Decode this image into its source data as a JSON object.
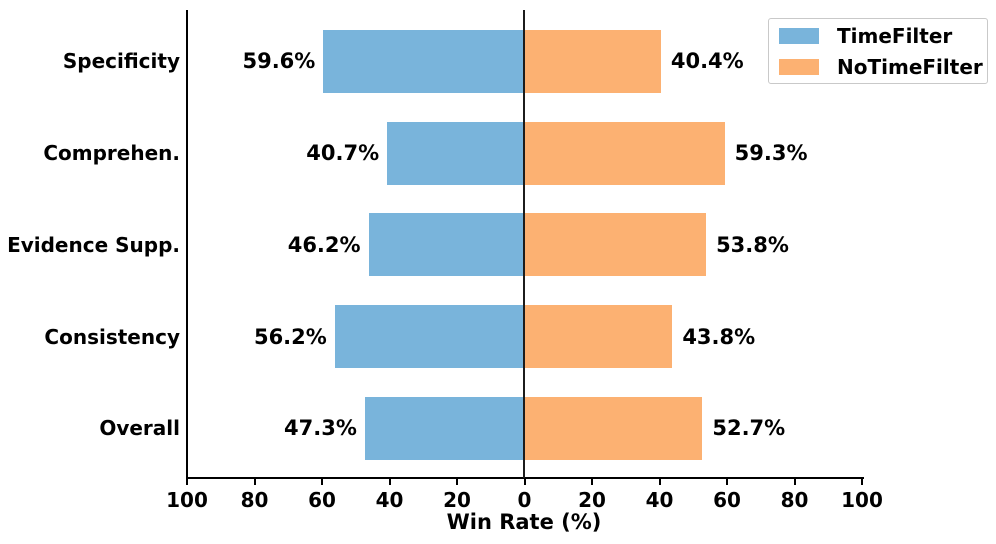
{
  "chart_data": {
    "type": "bar",
    "orientation": "diverging-horizontal",
    "title": "",
    "xlabel": "Win Rate (%)",
    "ylabel": "",
    "xlim": [
      -100,
      100
    ],
    "grid": false,
    "zero_line": true,
    "categories": [
      "Specificity",
      "Comprehen.",
      "Evidence Supp.",
      "Consistency",
      "Overall"
    ],
    "series": [
      {
        "name": "TimeFilter",
        "side": "left",
        "color": "#79b4db",
        "values": [
          59.6,
          40.7,
          46.2,
          56.2,
          47.3
        ],
        "labels": [
          "59.6%",
          "40.7%",
          "46.2%",
          "56.2%",
          "47.3%"
        ]
      },
      {
        "name": "NoTimeFilter",
        "side": "right",
        "color": "#fcb172",
        "values": [
          40.4,
          59.3,
          53.8,
          43.8,
          52.7
        ],
        "labels": [
          "40.4%",
          "59.3%",
          "53.8%",
          "43.8%",
          "52.7%"
        ]
      }
    ],
    "x_tick_labels": [
      "100",
      "80",
      "60",
      "40",
      "20",
      "0",
      "20",
      "40",
      "60",
      "80",
      "100"
    ],
    "legend": {
      "position": "upper right",
      "entries": [
        "TimeFilter",
        "NoTimeFilter"
      ]
    },
    "axis_color": "#000000",
    "text_color": "#000000"
  }
}
